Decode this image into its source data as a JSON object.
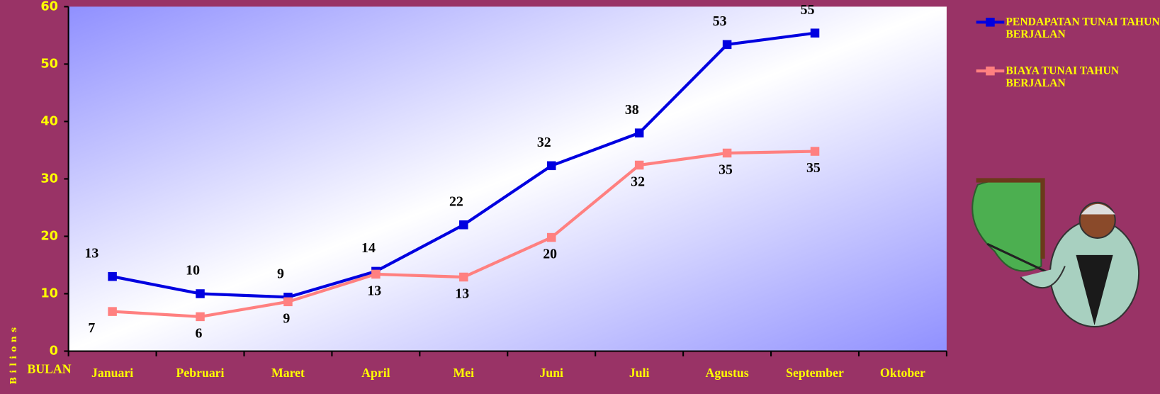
{
  "chart_data": {
    "type": "line",
    "x_label": "BULAN",
    "y_label": "Bilions",
    "categories": [
      "Januari",
      "Pebruari",
      "Maret",
      "April",
      "Mei",
      "Juni",
      "Juli",
      "Agustus",
      "September",
      "Oktober"
    ],
    "series": [
      {
        "name": "PENDAPATAN TUNAI TAHUN BERJALAN",
        "color": "#0000e0",
        "values": [
          13.0,
          10.0,
          9.4,
          13.9,
          22.0,
          32.3,
          38.0,
          53.4,
          55.4,
          null
        ],
        "value_labels": [
          "13",
          "10",
          "9",
          "14",
          "22",
          "32",
          "38",
          "53",
          "55",
          null
        ]
      },
      {
        "name": "BIAYA TUNAI TAHUN BERJALAN",
        "color": "#ff8080",
        "values": [
          6.9,
          6.0,
          8.6,
          13.4,
          12.9,
          19.8,
          32.4,
          34.5,
          34.8,
          null
        ],
        "value_labels": [
          "7",
          "6",
          "9",
          "13",
          "13",
          "20",
          "32",
          "35",
          "35",
          null
        ]
      }
    ],
    "ylim": [
      0,
      60
    ],
    "yticks": [
      0,
      10,
      20,
      30,
      40,
      50,
      60
    ],
    "grid": false,
    "legend": "right"
  }
}
